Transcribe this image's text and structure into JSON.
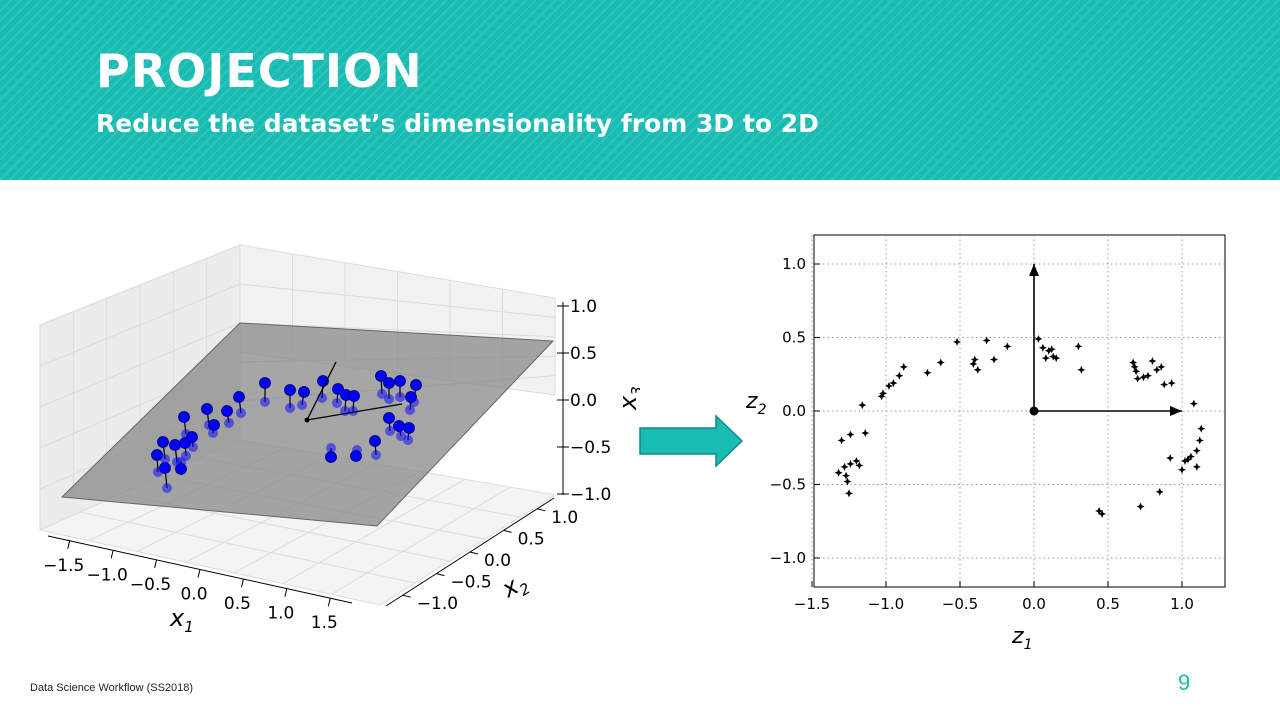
{
  "slide": {
    "title": "PROJECTION",
    "subtitle": "Reduce the dataset’s dimensionality from 3D to 2D",
    "footer": "Data Science Workflow (SS2018)",
    "page_number": "9",
    "banner_color": "#19bcb2",
    "arrow_color": "#19bcb2",
    "arrow_icon": "right-arrow-icon"
  },
  "chart_data": [
    {
      "type": "scatter",
      "projection": "3d",
      "xlabel": "x1",
      "ylabel": "x2",
      "zlabel": "x3",
      "xticks": [
        "−1.5",
        "−1.0",
        "−0.5",
        "0.0",
        "0.5",
        "1.0",
        "1.5"
      ],
      "yticks": [
        "−1.0",
        "−0.5",
        "0.0",
        "0.5",
        "1.0"
      ],
      "zticks": [
        "−1.0",
        "−0.5",
        "0.0",
        "0.5",
        "1.0"
      ],
      "xlim": [
        -1.8,
        1.8
      ],
      "ylim": [
        -1.3,
        1.3
      ],
      "zlim": [
        -1.0,
        1.0
      ],
      "plane_color": "#808080",
      "point_color": "#0000ff",
      "grid": true
    },
    {
      "type": "scatter",
      "xlabel": "z1",
      "ylabel": "z2",
      "xlim": [
        -1.5,
        1.3
      ],
      "ylim": [
        -1.2,
        1.2
      ],
      "xticks": [
        "−1.5",
        "−1.0",
        "−0.5",
        "0.0",
        "0.5",
        "1.0"
      ],
      "yticks": [
        "−1.0",
        "−0.5",
        "0.0",
        "0.5",
        "1.0"
      ],
      "grid": true,
      "marker": "plus-star",
      "axes_arrows": [
        {
          "from": [
            0,
            0
          ],
          "to": [
            0,
            1.0
          ]
        },
        {
          "from": [
            0,
            0
          ],
          "to": [
            1.0,
            0
          ]
        }
      ],
      "points": [
        [
          -1.32,
          -0.42
        ],
        [
          -1.3,
          -0.2
        ],
        [
          -1.28,
          -0.38
        ],
        [
          -1.27,
          -0.44
        ],
        [
          -1.26,
          -0.48
        ],
        [
          -1.25,
          -0.56
        ],
        [
          -1.24,
          -0.36
        ],
        [
          -1.24,
          -0.16
        ],
        [
          -1.2,
          -0.34
        ],
        [
          -1.18,
          -0.37
        ],
        [
          -1.16,
          0.04
        ],
        [
          -1.14,
          -0.15
        ],
        [
          -1.03,
          0.1
        ],
        [
          -1.02,
          0.12
        ],
        [
          -0.98,
          0.17
        ],
        [
          -0.95,
          0.19
        ],
        [
          -0.91,
          0.24
        ],
        [
          -0.88,
          0.3
        ],
        [
          -0.72,
          0.26
        ],
        [
          -0.63,
          0.33
        ],
        [
          -0.52,
          0.47
        ],
        [
          -0.41,
          0.32
        ],
        [
          -0.4,
          0.35
        ],
        [
          -0.38,
          0.28
        ],
        [
          -0.32,
          0.48
        ],
        [
          -0.27,
          0.35
        ],
        [
          -0.18,
          0.44
        ],
        [
          0.03,
          0.49
        ],
        [
          0.06,
          0.43
        ],
        [
          0.08,
          0.36
        ],
        [
          0.1,
          0.41
        ],
        [
          0.12,
          0.42
        ],
        [
          0.13,
          0.37
        ],
        [
          0.15,
          0.36
        ],
        [
          0.3,
          0.44
        ],
        [
          0.32,
          0.28
        ],
        [
          0.44,
          -0.68
        ],
        [
          0.46,
          -0.7
        ],
        [
          0.67,
          0.33
        ],
        [
          0.68,
          0.3
        ],
        [
          0.69,
          0.27
        ],
        [
          0.7,
          0.22
        ],
        [
          0.72,
          -0.65
        ],
        [
          0.74,
          0.23
        ],
        [
          0.77,
          0.24
        ],
        [
          0.8,
          0.34
        ],
        [
          0.83,
          0.28
        ],
        [
          0.85,
          -0.55
        ],
        [
          0.86,
          0.3
        ],
        [
          0.88,
          0.18
        ],
        [
          0.92,
          -0.32
        ],
        [
          0.93,
          0.19
        ],
        [
          1.0,
          -0.4
        ],
        [
          1.02,
          -0.34
        ],
        [
          1.04,
          -0.33
        ],
        [
          1.06,
          -0.31
        ],
        [
          1.08,
          0.05
        ],
        [
          1.1,
          -0.38
        ],
        [
          1.1,
          -0.27
        ],
        [
          1.12,
          -0.2
        ],
        [
          1.13,
          -0.12
        ]
      ]
    }
  ]
}
